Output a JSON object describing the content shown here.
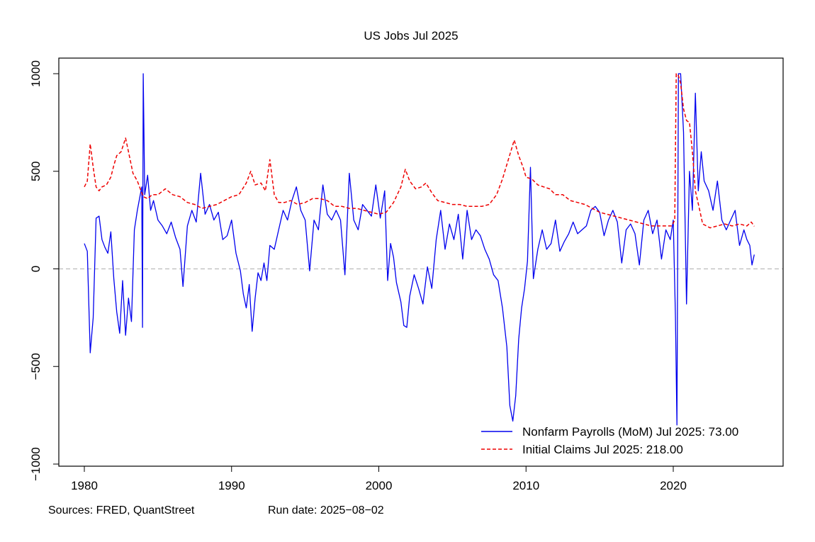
{
  "chart_data": {
    "type": "line",
    "title": "US Jobs Jul 2025",
    "xlabel": "",
    "ylabel": "",
    "xlim": [
      1978.2,
      2027.0
    ],
    "ylim": [
      -1000,
      1000
    ],
    "x_ticks": [
      1980,
      1990,
      2000,
      2010,
      2020
    ],
    "x_tick_labels": [
      "1980",
      "1990",
      "2000",
      "2010",
      "2020"
    ],
    "y_ticks": [
      -1000,
      -500,
      0,
      500,
      1000
    ],
    "y_tick_labels": [
      "−1000",
      "−500",
      "0",
      "500",
      "1000"
    ],
    "reference_line": {
      "y": 0,
      "style": "dashed",
      "color": "#bbbbbb"
    },
    "legend_position": "bottom-right",
    "series": [
      {
        "name": "Nonfarm Payrolls (MoM) Jul 2025: 73.00",
        "color": "#0000ee",
        "style": "solid",
        "points": [
          [
            1980.0,
            130
          ],
          [
            1980.2,
            90
          ],
          [
            1980.4,
            -430
          ],
          [
            1980.6,
            -250
          ],
          [
            1980.8,
            260
          ],
          [
            1981.0,
            270
          ],
          [
            1981.2,
            150
          ],
          [
            1981.4,
            110
          ],
          [
            1981.6,
            80
          ],
          [
            1981.8,
            190
          ],
          [
            1982.0,
            -50
          ],
          [
            1982.2,
            -220
          ],
          [
            1982.4,
            -330
          ],
          [
            1982.6,
            -60
          ],
          [
            1982.8,
            -340
          ],
          [
            1983.0,
            -150
          ],
          [
            1983.2,
            -270
          ],
          [
            1983.4,
            200
          ],
          [
            1983.6,
            300
          ],
          [
            1983.9,
            420
          ],
          [
            1983.95,
            -300
          ],
          [
            1984.0,
            1000
          ],
          [
            1984.1,
            380
          ],
          [
            1984.3,
            480
          ],
          [
            1984.5,
            300
          ],
          [
            1984.7,
            350
          ],
          [
            1985.0,
            250
          ],
          [
            1985.3,
            220
          ],
          [
            1985.6,
            180
          ],
          [
            1985.9,
            240
          ],
          [
            1986.2,
            160
          ],
          [
            1986.5,
            100
          ],
          [
            1986.7,
            -90
          ],
          [
            1987.0,
            220
          ],
          [
            1987.3,
            300
          ],
          [
            1987.6,
            240
          ],
          [
            1987.9,
            490
          ],
          [
            1988.2,
            280
          ],
          [
            1988.5,
            330
          ],
          [
            1988.8,
            250
          ],
          [
            1989.1,
            290
          ],
          [
            1989.4,
            150
          ],
          [
            1989.7,
            170
          ],
          [
            1990.0,
            250
          ],
          [
            1990.3,
            80
          ],
          [
            1990.6,
            -10
          ],
          [
            1990.8,
            -130
          ],
          [
            1991.0,
            -200
          ],
          [
            1991.2,
            -80
          ],
          [
            1991.4,
            -320
          ],
          [
            1991.6,
            -150
          ],
          [
            1991.8,
            -20
          ],
          [
            1992.0,
            -60
          ],
          [
            1992.2,
            30
          ],
          [
            1992.4,
            -60
          ],
          [
            1992.6,
            120
          ],
          [
            1992.9,
            100
          ],
          [
            1993.2,
            200
          ],
          [
            1993.5,
            300
          ],
          [
            1993.8,
            250
          ],
          [
            1994.1,
            350
          ],
          [
            1994.4,
            420
          ],
          [
            1994.7,
            300
          ],
          [
            1995.0,
            250
          ],
          [
            1995.3,
            -10
          ],
          [
            1995.6,
            250
          ],
          [
            1995.9,
            200
          ],
          [
            1996.2,
            430
          ],
          [
            1996.5,
            280
          ],
          [
            1996.8,
            250
          ],
          [
            1997.1,
            300
          ],
          [
            1997.4,
            250
          ],
          [
            1997.7,
            -30
          ],
          [
            1998.0,
            490
          ],
          [
            1998.3,
            250
          ],
          [
            1998.6,
            200
          ],
          [
            1998.9,
            330
          ],
          [
            1999.2,
            300
          ],
          [
            1999.5,
            270
          ],
          [
            1999.8,
            430
          ],
          [
            2000.1,
            260
          ],
          [
            2000.4,
            400
          ],
          [
            2000.6,
            -60
          ],
          [
            2000.8,
            130
          ],
          [
            2001.0,
            60
          ],
          [
            2001.2,
            -70
          ],
          [
            2001.5,
            -170
          ],
          [
            2001.7,
            -290
          ],
          [
            2001.9,
            -300
          ],
          [
            2002.1,
            -140
          ],
          [
            2002.4,
            -30
          ],
          [
            2002.7,
            -100
          ],
          [
            2003.0,
            -180
          ],
          [
            2003.3,
            10
          ],
          [
            2003.6,
            -100
          ],
          [
            2003.9,
            150
          ],
          [
            2004.2,
            300
          ],
          [
            2004.5,
            100
          ],
          [
            2004.8,
            230
          ],
          [
            2005.1,
            150
          ],
          [
            2005.4,
            280
          ],
          [
            2005.7,
            50
          ],
          [
            2006.0,
            300
          ],
          [
            2006.3,
            150
          ],
          [
            2006.6,
            200
          ],
          [
            2006.9,
            170
          ],
          [
            2007.2,
            100
          ],
          [
            2007.5,
            50
          ],
          [
            2007.8,
            -30
          ],
          [
            2008.1,
            -60
          ],
          [
            2008.4,
            -200
          ],
          [
            2008.7,
            -400
          ],
          [
            2008.9,
            -700
          ],
          [
            2009.1,
            -780
          ],
          [
            2009.3,
            -650
          ],
          [
            2009.5,
            -360
          ],
          [
            2009.7,
            -200
          ],
          [
            2009.9,
            -100
          ],
          [
            2010.1,
            40
          ],
          [
            2010.3,
            520
          ],
          [
            2010.5,
            -50
          ],
          [
            2010.8,
            100
          ],
          [
            2011.1,
            200
          ],
          [
            2011.4,
            100
          ],
          [
            2011.7,
            130
          ],
          [
            2012.0,
            250
          ],
          [
            2012.3,
            90
          ],
          [
            2012.6,
            140
          ],
          [
            2012.9,
            180
          ],
          [
            2013.2,
            240
          ],
          [
            2013.5,
            180
          ],
          [
            2013.8,
            200
          ],
          [
            2014.1,
            220
          ],
          [
            2014.4,
            300
          ],
          [
            2014.7,
            320
          ],
          [
            2015.0,
            290
          ],
          [
            2015.3,
            170
          ],
          [
            2015.6,
            250
          ],
          [
            2015.9,
            300
          ],
          [
            2016.2,
            240
          ],
          [
            2016.5,
            30
          ],
          [
            2016.8,
            200
          ],
          [
            2017.1,
            230
          ],
          [
            2017.4,
            180
          ],
          [
            2017.7,
            20
          ],
          [
            2018.0,
            250
          ],
          [
            2018.3,
            300
          ],
          [
            2018.6,
            180
          ],
          [
            2018.9,
            250
          ],
          [
            2019.2,
            50
          ],
          [
            2019.5,
            200
          ],
          [
            2019.8,
            150
          ],
          [
            2020.0,
            250
          ],
          [
            2020.15,
            -250
          ],
          [
            2020.25,
            -800
          ],
          [
            2020.35,
            1000
          ],
          [
            2020.5,
            1000
          ],
          [
            2020.7,
            700
          ],
          [
            2020.9,
            -180
          ],
          [
            2021.1,
            500
          ],
          [
            2021.3,
            300
          ],
          [
            2021.5,
            900
          ],
          [
            2021.7,
            400
          ],
          [
            2021.9,
            600
          ],
          [
            2022.1,
            450
          ],
          [
            2022.4,
            400
          ],
          [
            2022.7,
            300
          ],
          [
            2023.0,
            450
          ],
          [
            2023.3,
            250
          ],
          [
            2023.6,
            200
          ],
          [
            2023.9,
            250
          ],
          [
            2024.2,
            300
          ],
          [
            2024.5,
            120
          ],
          [
            2024.8,
            200
          ],
          [
            2025.0,
            150
          ],
          [
            2025.2,
            120
          ],
          [
            2025.35,
            20
          ],
          [
            2025.5,
            73
          ]
        ]
      },
      {
        "name": "Initial Claims Jul 2025: 218.00",
        "color": "#ee0000",
        "style": "dashed",
        "points": [
          [
            1980.0,
            420
          ],
          [
            1980.2,
            450
          ],
          [
            1980.4,
            640
          ],
          [
            1980.6,
            520
          ],
          [
            1980.8,
            420
          ],
          [
            1981.0,
            400
          ],
          [
            1981.2,
            420
          ],
          [
            1981.5,
            430
          ],
          [
            1981.8,
            470
          ],
          [
            1982.0,
            530
          ],
          [
            1982.2,
            580
          ],
          [
            1982.5,
            600
          ],
          [
            1982.8,
            670
          ],
          [
            1983.0,
            600
          ],
          [
            1983.3,
            490
          ],
          [
            1983.6,
            450
          ],
          [
            1984.0,
            370
          ],
          [
            1984.3,
            360
          ],
          [
            1984.6,
            380
          ],
          [
            1985.0,
            380
          ],
          [
            1985.5,
            410
          ],
          [
            1986.0,
            380
          ],
          [
            1986.5,
            370
          ],
          [
            1987.0,
            340
          ],
          [
            1987.5,
            330
          ],
          [
            1988.0,
            310
          ],
          [
            1988.5,
            320
          ],
          [
            1989.0,
            330
          ],
          [
            1989.5,
            350
          ],
          [
            1990.0,
            370
          ],
          [
            1990.5,
            380
          ],
          [
            1991.0,
            440
          ],
          [
            1991.3,
            500
          ],
          [
            1991.6,
            430
          ],
          [
            1992.0,
            440
          ],
          [
            1992.3,
            400
          ],
          [
            1992.6,
            560
          ],
          [
            1992.9,
            380
          ],
          [
            1993.2,
            340
          ],
          [
            1993.6,
            340
          ],
          [
            1994.0,
            350
          ],
          [
            1994.5,
            330
          ],
          [
            1995.0,
            340
          ],
          [
            1995.5,
            360
          ],
          [
            1996.0,
            360
          ],
          [
            1996.5,
            350
          ],
          [
            1997.0,
            320
          ],
          [
            1997.5,
            320
          ],
          [
            1998.0,
            310
          ],
          [
            1998.5,
            310
          ],
          [
            1999.0,
            300
          ],
          [
            1999.5,
            290
          ],
          [
            2000.0,
            280
          ],
          [
            2000.5,
            290
          ],
          [
            2001.0,
            340
          ],
          [
            2001.5,
            420
          ],
          [
            2001.8,
            510
          ],
          [
            2002.1,
            450
          ],
          [
            2002.5,
            410
          ],
          [
            2002.9,
            420
          ],
          [
            2003.2,
            440
          ],
          [
            2003.6,
            390
          ],
          [
            2004.0,
            350
          ],
          [
            2004.5,
            340
          ],
          [
            2005.0,
            330
          ],
          [
            2005.5,
            330
          ],
          [
            2006.0,
            320
          ],
          [
            2006.5,
            320
          ],
          [
            2007.0,
            320
          ],
          [
            2007.5,
            330
          ],
          [
            2008.0,
            380
          ],
          [
            2008.4,
            460
          ],
          [
            2008.8,
            560
          ],
          [
            2009.2,
            660
          ],
          [
            2009.5,
            580
          ],
          [
            2009.8,
            520
          ],
          [
            2010.0,
            470
          ],
          [
            2010.4,
            460
          ],
          [
            2010.8,
            430
          ],
          [
            2011.2,
            420
          ],
          [
            2011.6,
            410
          ],
          [
            2012.0,
            380
          ],
          [
            2012.5,
            380
          ],
          [
            2013.0,
            350
          ],
          [
            2013.5,
            340
          ],
          [
            2014.0,
            330
          ],
          [
            2014.5,
            310
          ],
          [
            2015.0,
            290
          ],
          [
            2015.5,
            280
          ],
          [
            2016.0,
            270
          ],
          [
            2016.5,
            260
          ],
          [
            2017.0,
            250
          ],
          [
            2017.5,
            240
          ],
          [
            2018.0,
            230
          ],
          [
            2018.5,
            220
          ],
          [
            2019.0,
            220
          ],
          [
            2019.5,
            220
          ],
          [
            2019.9,
            220
          ],
          [
            2020.1,
            250
          ],
          [
            2020.2,
            1000
          ],
          [
            2020.35,
            990
          ],
          [
            2020.5,
            950
          ],
          [
            2020.7,
            820
          ],
          [
            2020.9,
            760
          ],
          [
            2021.1,
            750
          ],
          [
            2021.3,
            600
          ],
          [
            2021.5,
            400
          ],
          [
            2021.8,
            300
          ],
          [
            2022.0,
            230
          ],
          [
            2022.5,
            210
          ],
          [
            2023.0,
            220
          ],
          [
            2023.5,
            230
          ],
          [
            2024.0,
            220
          ],
          [
            2024.5,
            230
          ],
          [
            2025.0,
            220
          ],
          [
            2025.3,
            240
          ],
          [
            2025.5,
            218
          ]
        ]
      }
    ]
  },
  "footer": {
    "sources": "Sources: FRED, QuantStreet",
    "run_date": "Run date: 2025−08−02"
  }
}
